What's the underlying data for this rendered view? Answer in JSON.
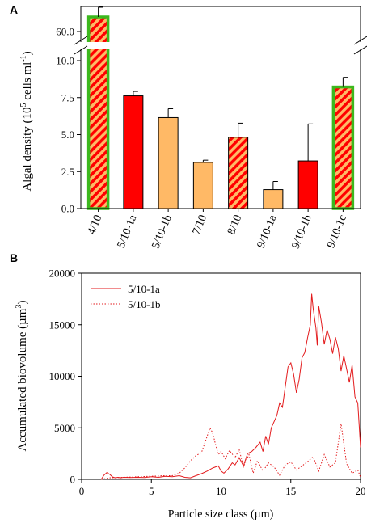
{
  "chart_data": [
    {
      "panel_label": "A",
      "type": "bar",
      "ylabel": "Algal density (10",
      "ylabel_sup": "5",
      "ylabel_end": " cells ml",
      "ylabel_sup2": "-1",
      "ylabel_close": ")",
      "categories": [
        "4/10",
        "5/10-1a",
        "5/10-1b",
        "7/10",
        "8/10",
        "9/10-1a",
        "9/10-1b",
        "9/10-1c"
      ],
      "values": [
        60.9,
        7.62,
        6.15,
        3.12,
        4.82,
        1.28,
        3.22,
        8.22
      ],
      "errors": [
        0.6,
        0.3,
        0.6,
        0.15,
        0.95,
        0.55,
        2.5,
        0.65
      ],
      "styles": [
        "hatched-green",
        "red",
        "orange",
        "orange",
        "hatched",
        "orange",
        "red",
        "hatched-green"
      ],
      "lower_ylim": [
        0,
        11.5
      ],
      "yticks": [
        "0.0",
        "2.5",
        "5.0",
        "7.5",
        "10.0"
      ],
      "upper_ytick": "60.0",
      "upper_ytick_value": 60.0,
      "axis_break": true,
      "colors": {
        "red": "#ff0000",
        "orange": "#ffb966",
        "green": "#3cb81e"
      }
    },
    {
      "panel_label": "B",
      "type": "line",
      "xlabel": "Particle size class (µm)",
      "ylabel": "Accumulated biovolume (µm",
      "ylabel_sup": "3",
      "ylabel_close": ")",
      "xlim": [
        0,
        20
      ],
      "ylim": [
        0,
        20000
      ],
      "xticks": [
        "0",
        "5",
        "10",
        "15",
        "20"
      ],
      "yticks": [
        "0",
        "5000",
        "10000",
        "15000",
        "20000"
      ],
      "legend_position": "top-left",
      "series": [
        {
          "name": "5/10-1a",
          "style": "solid",
          "color": "#e31a1c",
          "points": [
            [
              1.4,
              0
            ],
            [
              1.6,
              400
            ],
            [
              1.8,
              650
            ],
            [
              2.0,
              500
            ],
            [
              2.2,
              250
            ],
            [
              2.4,
              150
            ],
            [
              2.6,
              200
            ],
            [
              2.8,
              150
            ],
            [
              3.0,
              200
            ],
            [
              3.5,
              180
            ],
            [
              4.0,
              200
            ],
            [
              4.5,
              180
            ],
            [
              5.0,
              250
            ],
            [
              5.5,
              200
            ],
            [
              6.0,
              300
            ],
            [
              6.5,
              250
            ],
            [
              7.0,
              350
            ],
            [
              7.4,
              200
            ],
            [
              7.8,
              150
            ],
            [
              8.2,
              350
            ],
            [
              8.6,
              550
            ],
            [
              9.0,
              800
            ],
            [
              9.4,
              1100
            ],
            [
              9.8,
              1300
            ],
            [
              10.0,
              800
            ],
            [
              10.2,
              600
            ],
            [
              10.5,
              1000
            ],
            [
              10.8,
              1600
            ],
            [
              11.0,
              1400
            ],
            [
              11.3,
              2100
            ],
            [
              11.6,
              1300
            ],
            [
              11.9,
              2500
            ],
            [
              12.2,
              2700
            ],
            [
              12.5,
              3100
            ],
            [
              12.8,
              3600
            ],
            [
              13.0,
              2700
            ],
            [
              13.2,
              4200
            ],
            [
              13.4,
              3400
            ],
            [
              13.6,
              5000
            ],
            [
              13.8,
              5600
            ],
            [
              14.0,
              6200
            ],
            [
              14.2,
              7400
            ],
            [
              14.4,
              7000
            ],
            [
              14.6,
              9000
            ],
            [
              14.8,
              10900
            ],
            [
              15.0,
              11300
            ],
            [
              15.2,
              10200
            ],
            [
              15.4,
              8400
            ],
            [
              15.6,
              9700
            ],
            [
              15.8,
              11800
            ],
            [
              16.0,
              12300
            ],
            [
              16.2,
              13700
            ],
            [
              16.4,
              15000
            ],
            [
              16.5,
              18000
            ],
            [
              16.6,
              16600
            ],
            [
              16.8,
              14700
            ],
            [
              16.9,
              13000
            ],
            [
              17.0,
              16800
            ],
            [
              17.2,
              15200
            ],
            [
              17.4,
              13100
            ],
            [
              17.6,
              14500
            ],
            [
              17.8,
              13600
            ],
            [
              18.0,
              12200
            ],
            [
              18.2,
              13800
            ],
            [
              18.4,
              12700
            ],
            [
              18.6,
              10500
            ],
            [
              18.8,
              12000
            ],
            [
              19.0,
              10700
            ],
            [
              19.2,
              9400
            ],
            [
              19.4,
              11100
            ],
            [
              19.6,
              8000
            ],
            [
              19.8,
              7400
            ],
            [
              20.0,
              3100
            ]
          ]
        },
        {
          "name": "5/10-1b",
          "style": "dotted",
          "color": "#e31a1c",
          "points": [
            [
              1.4,
              0
            ],
            [
              2.0,
              150
            ],
            [
              3.0,
              200
            ],
            [
              4.0,
              250
            ],
            [
              5.0,
              300
            ],
            [
              6.0,
              350
            ],
            [
              6.5,
              350
            ],
            [
              7.0,
              600
            ],
            [
              7.4,
              1100
            ],
            [
              7.8,
              1800
            ],
            [
              8.2,
              2300
            ],
            [
              8.6,
              2600
            ],
            [
              9.0,
              4200
            ],
            [
              9.2,
              5000
            ],
            [
              9.4,
              4500
            ],
            [
              9.6,
              3400
            ],
            [
              9.8,
              2400
            ],
            [
              10.0,
              2700
            ],
            [
              10.3,
              2000
            ],
            [
              10.6,
              2800
            ],
            [
              11.0,
              2100
            ],
            [
              11.3,
              2900
            ],
            [
              11.6,
              1200
            ],
            [
              12.0,
              2400
            ],
            [
              12.3,
              600
            ],
            [
              12.6,
              1800
            ],
            [
              13.0,
              800
            ],
            [
              13.4,
              1600
            ],
            [
              13.8,
              1200
            ],
            [
              14.2,
              400
            ],
            [
              14.6,
              1400
            ],
            [
              15.0,
              1700
            ],
            [
              15.4,
              900
            ],
            [
              15.8,
              1300
            ],
            [
              16.2,
              1700
            ],
            [
              16.6,
              2200
            ],
            [
              17.0,
              800
            ],
            [
              17.4,
              2400
            ],
            [
              17.8,
              1200
            ],
            [
              18.2,
              1600
            ],
            [
              18.6,
              5400
            ],
            [
              19.0,
              1500
            ],
            [
              19.4,
              600
            ],
            [
              19.8,
              900
            ],
            [
              20.0,
              200
            ]
          ]
        }
      ]
    }
  ]
}
